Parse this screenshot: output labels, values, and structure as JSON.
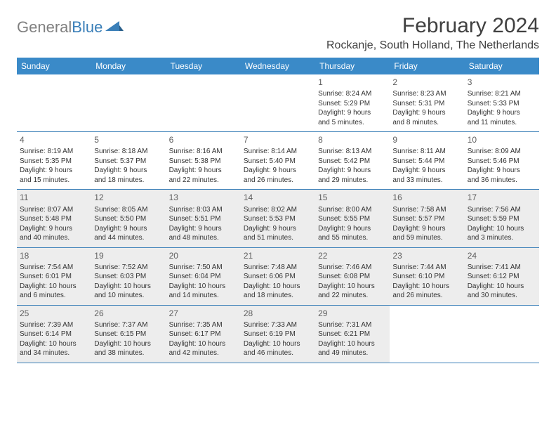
{
  "logo": {
    "part1": "General",
    "part2": "Blue"
  },
  "title": "February 2024",
  "location": "Rockanje, South Holland, The Netherlands",
  "colors": {
    "header_bg": "#3a8ac8",
    "header_text": "#ffffff",
    "border": "#3a7fb8",
    "shaded_bg": "#ededed",
    "text": "#333333",
    "logo_gray": "#808080",
    "logo_blue": "#3a7fb8"
  },
  "weekdays": [
    "Sunday",
    "Monday",
    "Tuesday",
    "Wednesday",
    "Thursday",
    "Friday",
    "Saturday"
  ],
  "weeks": [
    [
      {
        "empty": true
      },
      {
        "empty": true
      },
      {
        "empty": true
      },
      {
        "empty": true
      },
      {
        "num": "1",
        "sunrise": "Sunrise: 8:24 AM",
        "sunset": "Sunset: 5:29 PM",
        "day1": "Daylight: 9 hours",
        "day2": "and 5 minutes."
      },
      {
        "num": "2",
        "sunrise": "Sunrise: 8:23 AM",
        "sunset": "Sunset: 5:31 PM",
        "day1": "Daylight: 9 hours",
        "day2": "and 8 minutes."
      },
      {
        "num": "3",
        "sunrise": "Sunrise: 8:21 AM",
        "sunset": "Sunset: 5:33 PM",
        "day1": "Daylight: 9 hours",
        "day2": "and 11 minutes."
      }
    ],
    [
      {
        "num": "4",
        "sunrise": "Sunrise: 8:19 AM",
        "sunset": "Sunset: 5:35 PM",
        "day1": "Daylight: 9 hours",
        "day2": "and 15 minutes."
      },
      {
        "num": "5",
        "sunrise": "Sunrise: 8:18 AM",
        "sunset": "Sunset: 5:37 PM",
        "day1": "Daylight: 9 hours",
        "day2": "and 18 minutes."
      },
      {
        "num": "6",
        "sunrise": "Sunrise: 8:16 AM",
        "sunset": "Sunset: 5:38 PM",
        "day1": "Daylight: 9 hours",
        "day2": "and 22 minutes."
      },
      {
        "num": "7",
        "sunrise": "Sunrise: 8:14 AM",
        "sunset": "Sunset: 5:40 PM",
        "day1": "Daylight: 9 hours",
        "day2": "and 26 minutes."
      },
      {
        "num": "8",
        "sunrise": "Sunrise: 8:13 AM",
        "sunset": "Sunset: 5:42 PM",
        "day1": "Daylight: 9 hours",
        "day2": "and 29 minutes."
      },
      {
        "num": "9",
        "sunrise": "Sunrise: 8:11 AM",
        "sunset": "Sunset: 5:44 PM",
        "day1": "Daylight: 9 hours",
        "day2": "and 33 minutes."
      },
      {
        "num": "10",
        "sunrise": "Sunrise: 8:09 AM",
        "sunset": "Sunset: 5:46 PM",
        "day1": "Daylight: 9 hours",
        "day2": "and 36 minutes."
      }
    ],
    [
      {
        "num": "11",
        "sunrise": "Sunrise: 8:07 AM",
        "sunset": "Sunset: 5:48 PM",
        "day1": "Daylight: 9 hours",
        "day2": "and 40 minutes.",
        "shaded": true
      },
      {
        "num": "12",
        "sunrise": "Sunrise: 8:05 AM",
        "sunset": "Sunset: 5:50 PM",
        "day1": "Daylight: 9 hours",
        "day2": "and 44 minutes.",
        "shaded": true
      },
      {
        "num": "13",
        "sunrise": "Sunrise: 8:03 AM",
        "sunset": "Sunset: 5:51 PM",
        "day1": "Daylight: 9 hours",
        "day2": "and 48 minutes.",
        "shaded": true
      },
      {
        "num": "14",
        "sunrise": "Sunrise: 8:02 AM",
        "sunset": "Sunset: 5:53 PM",
        "day1": "Daylight: 9 hours",
        "day2": "and 51 minutes.",
        "shaded": true
      },
      {
        "num": "15",
        "sunrise": "Sunrise: 8:00 AM",
        "sunset": "Sunset: 5:55 PM",
        "day1": "Daylight: 9 hours",
        "day2": "and 55 minutes.",
        "shaded": true
      },
      {
        "num": "16",
        "sunrise": "Sunrise: 7:58 AM",
        "sunset": "Sunset: 5:57 PM",
        "day1": "Daylight: 9 hours",
        "day2": "and 59 minutes.",
        "shaded": true
      },
      {
        "num": "17",
        "sunrise": "Sunrise: 7:56 AM",
        "sunset": "Sunset: 5:59 PM",
        "day1": "Daylight: 10 hours",
        "day2": "and 3 minutes.",
        "shaded": true
      }
    ],
    [
      {
        "num": "18",
        "sunrise": "Sunrise: 7:54 AM",
        "sunset": "Sunset: 6:01 PM",
        "day1": "Daylight: 10 hours",
        "day2": "and 6 minutes.",
        "shaded": true
      },
      {
        "num": "19",
        "sunrise": "Sunrise: 7:52 AM",
        "sunset": "Sunset: 6:03 PM",
        "day1": "Daylight: 10 hours",
        "day2": "and 10 minutes.",
        "shaded": true
      },
      {
        "num": "20",
        "sunrise": "Sunrise: 7:50 AM",
        "sunset": "Sunset: 6:04 PM",
        "day1": "Daylight: 10 hours",
        "day2": "and 14 minutes.",
        "shaded": true
      },
      {
        "num": "21",
        "sunrise": "Sunrise: 7:48 AM",
        "sunset": "Sunset: 6:06 PM",
        "day1": "Daylight: 10 hours",
        "day2": "and 18 minutes.",
        "shaded": true
      },
      {
        "num": "22",
        "sunrise": "Sunrise: 7:46 AM",
        "sunset": "Sunset: 6:08 PM",
        "day1": "Daylight: 10 hours",
        "day2": "and 22 minutes.",
        "shaded": true
      },
      {
        "num": "23",
        "sunrise": "Sunrise: 7:44 AM",
        "sunset": "Sunset: 6:10 PM",
        "day1": "Daylight: 10 hours",
        "day2": "and 26 minutes.",
        "shaded": true
      },
      {
        "num": "24",
        "sunrise": "Sunrise: 7:41 AM",
        "sunset": "Sunset: 6:12 PM",
        "day1": "Daylight: 10 hours",
        "day2": "and 30 minutes.",
        "shaded": true
      }
    ],
    [
      {
        "num": "25",
        "sunrise": "Sunrise: 7:39 AM",
        "sunset": "Sunset: 6:14 PM",
        "day1": "Daylight: 10 hours",
        "day2": "and 34 minutes.",
        "shaded": true
      },
      {
        "num": "26",
        "sunrise": "Sunrise: 7:37 AM",
        "sunset": "Sunset: 6:15 PM",
        "day1": "Daylight: 10 hours",
        "day2": "and 38 minutes.",
        "shaded": true
      },
      {
        "num": "27",
        "sunrise": "Sunrise: 7:35 AM",
        "sunset": "Sunset: 6:17 PM",
        "day1": "Daylight: 10 hours",
        "day2": "and 42 minutes.",
        "shaded": true
      },
      {
        "num": "28",
        "sunrise": "Sunrise: 7:33 AM",
        "sunset": "Sunset: 6:19 PM",
        "day1": "Daylight: 10 hours",
        "day2": "and 46 minutes.",
        "shaded": true
      },
      {
        "num": "29",
        "sunrise": "Sunrise: 7:31 AM",
        "sunset": "Sunset: 6:21 PM",
        "day1": "Daylight: 10 hours",
        "day2": "and 49 minutes.",
        "shaded": true
      },
      {
        "empty": true
      },
      {
        "empty": true
      }
    ]
  ]
}
